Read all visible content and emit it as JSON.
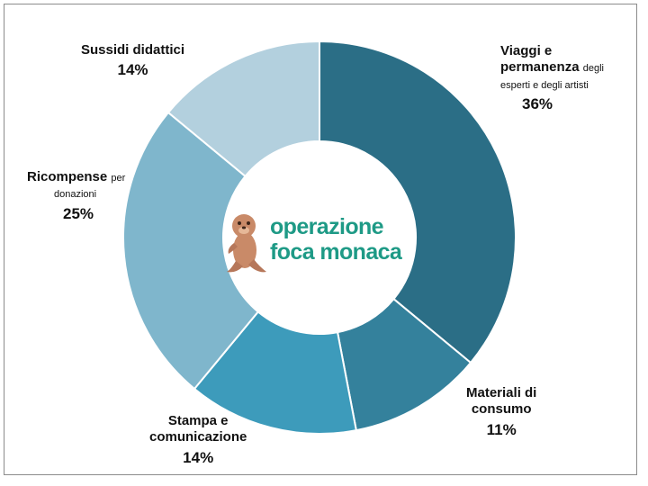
{
  "chart_data": {
    "type": "pie",
    "donut": true,
    "title": "",
    "start_angle_deg": 0,
    "direction": "clockwise",
    "slices": [
      {
        "label_main": "Viaggi e",
        "label_main2": "permanenza",
        "label_small": "degli",
        "label_small2": "esperti e degli artisti",
        "value": 36,
        "pct_text": "36%",
        "color": "#2b6e86"
      },
      {
        "label_main": "Materiali di",
        "label_main2": "consumo",
        "value": 11,
        "pct_text": "11%",
        "color": "#34819c"
      },
      {
        "label_main": "Stampa e",
        "label_main2": "comunicazione",
        "value": 14,
        "pct_text": "14%",
        "color": "#3d9bbb"
      },
      {
        "label_main": "Ricompense",
        "label_small": "per",
        "label_small2": "donazioni",
        "value": 25,
        "pct_text": "25%",
        "color": "#7fb6cc"
      },
      {
        "label_main": "Sussidi didattici",
        "value": 14,
        "pct_text": "14%",
        "color": "#b3d0de"
      }
    ],
    "legend": "none"
  },
  "logo": {
    "line1": "operazione",
    "line2": "foca monaca",
    "icon": "monk-seal-icon"
  }
}
